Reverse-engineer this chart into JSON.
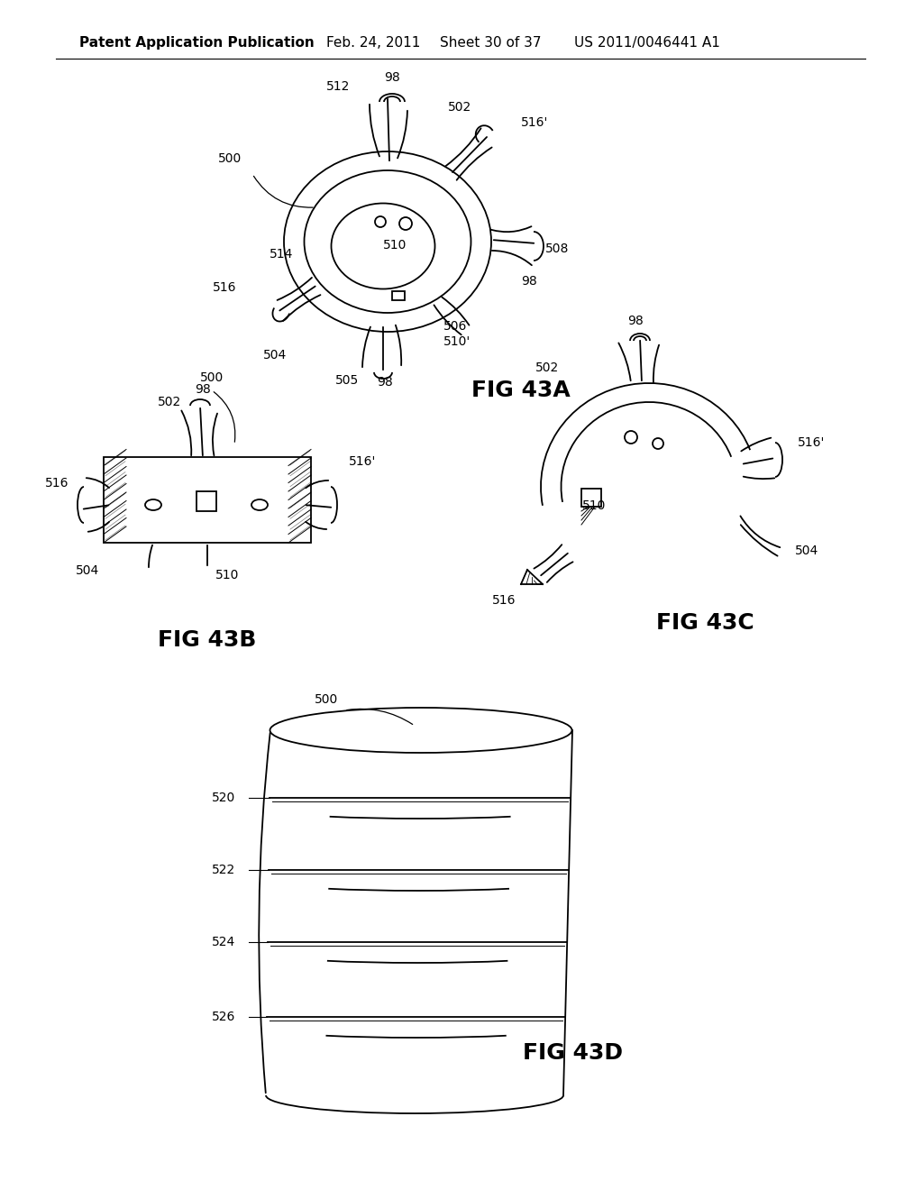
{
  "bg_color": "#ffffff",
  "header_left": "Patent Application Publication",
  "header_mid1": "Feb. 24, 2011",
  "header_mid2": "Sheet 30 of 37",
  "header_right": "US 2011/0046441 A1",
  "fig43a_label": "FIG 43A",
  "fig43b_label": "FIG 43B",
  "fig43c_label": "FIG 43C",
  "fig43d_label": "FIG 43D",
  "lc": "#000000",
  "tc": "#000000",
  "lw": 1.3,
  "ref_fs": 10,
  "fig_fs": 18,
  "hdr_fs": 11
}
